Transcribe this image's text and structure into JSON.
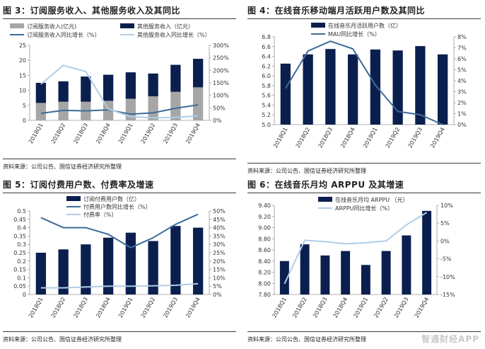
{
  "watermark": "智通财经APP",
  "colors": {
    "navy": "#0b1f4f",
    "grey": "#a6a6a6",
    "lightblue": "#b0cde6",
    "steel": "#3d6c99",
    "axis": "#999999"
  },
  "panels": [
    {
      "title": "图 3：订阅服务收入、其他服务收入及其同比",
      "source": "资料来源：公司公告、国信证券经济研究所整理"
    },
    {
      "title": "图 4：在线音乐移动端月活跃用户数及其同比",
      "source": "资料来源：公司公告、国信证券经济研究所整理"
    },
    {
      "title": "图 5：订阅付费用户数、付费率及增速",
      "source": "资料来源：公司公告、国信证券经济研究所整理"
    },
    {
      "title": "图 6：在线音乐月均 ARPPU 及其增速",
      "source": "资料来源：公司公告、国信证券经济研究所整理"
    }
  ],
  "chart_data": [
    {
      "type": "bar",
      "title": "订阅服务收入、其他服务收入及其同比",
      "stacked": true,
      "categories": [
        "2018Q1",
        "2018Q2",
        "2018Q3",
        "2018Q4",
        "2019Q1",
        "2019Q2",
        "2019Q3",
        "2019Q4"
      ],
      "ylim": [
        0,
        25
      ],
      "yticks": [
        0,
        5,
        10,
        15,
        20,
        25
      ],
      "y2lim": [
        0,
        300
      ],
      "y2ticks": [
        "0%",
        "50%",
        "100%",
        "150%",
        "200%",
        "250%",
        "300%"
      ],
      "y2max": 300,
      "series": [
        {
          "name": "订阅服务收入(亿元)",
          "kind": "bar",
          "color": "#a6a6a6",
          "values": [
            5.8,
            6.2,
            6.2,
            6.5,
            7.2,
            8.0,
            9.5,
            11.0
          ]
        },
        {
          "name": "其他服务收入（亿元）",
          "kind": "bar",
          "color": "#0b1f4f",
          "values": [
            6.7,
            6.8,
            8.4,
            8.7,
            8.8,
            7.6,
            9.0,
            9.5
          ]
        },
        {
          "name": "订阅服务收入同比增长（%）",
          "kind": "line",
          "axis": "right",
          "color": "#3d6c99",
          "values": [
            28,
            40,
            38,
            42,
            25,
            30,
            48,
            62
          ]
        },
        {
          "name": "其他服务收入同比增长（%）",
          "kind": "line",
          "axis": "right",
          "color": "#b0cde6",
          "values": [
            145,
            220,
            195,
            45,
            15,
            10,
            12,
            18
          ]
        }
      ]
    },
    {
      "type": "bar",
      "title": "在线音乐移动端月活跃用户数及其同比",
      "categories": [
        "2018Q1",
        "2018Q2",
        "2018Q3",
        "2018Q4",
        "2019Q1",
        "2019Q2",
        "2019Q3",
        "2019Q4"
      ],
      "ylim": [
        5.0,
        6.8
      ],
      "yticks": [
        "5.0",
        "5.2",
        "5.4",
        "5.6",
        "5.8",
        "6.0",
        "6.2",
        "6.4",
        "6.6",
        "6.8"
      ],
      "y2lim": [
        0,
        8
      ],
      "y2ticks": [
        "0%",
        "1%",
        "2%",
        "3%",
        "4%",
        "5%",
        "6%",
        "7%",
        "8%"
      ],
      "y2max": 8,
      "series": [
        {
          "name": "在线音乐月活跃用户数（亿）",
          "kind": "bar",
          "color": "#0b1f4f",
          "values": [
            6.25,
            6.44,
            6.55,
            6.44,
            6.54,
            6.52,
            6.61,
            6.44
          ]
        },
        {
          "name": "MAU同比增长（%）",
          "kind": "line",
          "axis": "right",
          "color": "#3d6c99",
          "values": [
            3.3,
            6.7,
            7.6,
            6.9,
            3.6,
            1.2,
            0.9,
            0.0
          ]
        }
      ]
    },
    {
      "type": "bar",
      "title": "订阅付费用户数、付费率及增速",
      "categories": [
        "2018Q1",
        "2018Q2",
        "2018Q3",
        "2018Q4",
        "2019Q1",
        "2019Q2",
        "2019Q3",
        "2019Q4"
      ],
      "ylim": [
        0,
        0.5
      ],
      "yticks": [
        "0",
        "0.05",
        "0.1",
        "0.15",
        "0.2",
        "0.25",
        "0.3",
        "0.35",
        "0.4",
        "0.45",
        "0.5"
      ],
      "y2lim": [
        0,
        50
      ],
      "y2ticks": [
        "0%",
        "5%",
        "10%",
        "15%",
        "20%",
        "25%",
        "30%",
        "35%",
        "40%",
        "45%",
        "50%"
      ],
      "y2max": 50,
      "series": [
        {
          "name": "订阅付费用户数（亿）",
          "kind": "bar",
          "color": "#0b1f4f",
          "values": [
            0.25,
            0.27,
            0.3,
            0.34,
            0.37,
            0.32,
            0.41,
            0.4
          ]
        },
        {
          "name": "付费用户数同比增长（%）",
          "kind": "line",
          "axis": "right",
          "color": "#3d6c99",
          "values": [
            46,
            40,
            40,
            36,
            28,
            34,
            42,
            48
          ]
        },
        {
          "name": "付费率（%）",
          "kind": "line",
          "axis": "right",
          "color": "#b0cde6",
          "values": [
            4.0,
            4.0,
            4.5,
            5.0,
            5.0,
            5.2,
            5.5,
            6.5
          ]
        }
      ]
    },
    {
      "type": "bar",
      "title": "在线音乐月均 ARPPU 及其增速",
      "categories": [
        "2018Q1",
        "2018Q2",
        "2018Q3",
        "2018Q4",
        "2019Q1",
        "2019Q2",
        "2019Q3",
        "2019Q4"
      ],
      "ylim": [
        7.8,
        9.4
      ],
      "yticks": [
        "7.80",
        "8.00",
        "8.20",
        "8.40",
        "8.60",
        "8.80",
        "9.00",
        "9.20",
        "9.40"
      ],
      "y2lim": [
        -15,
        10
      ],
      "y2ticks": [
        "-15%",
        "-10%",
        "-5%",
        "0%",
        "5%",
        "10%"
      ],
      "y2max": 10,
      "series": [
        {
          "name": "在线音乐月均 ARPPU （元）",
          "kind": "bar",
          "color": "#0b1f4f",
          "values": [
            8.4,
            8.7,
            8.5,
            8.58,
            8.33,
            8.58,
            8.86,
            9.3
          ]
        },
        {
          "name": "ARPPU同比增长（%）",
          "kind": "line",
          "axis": "right",
          "color": "#b0cde6",
          "values": [
            -12,
            0.2,
            -0.2,
            -0.8,
            -0.5,
            0.0,
            4.5,
            8.0
          ]
        }
      ]
    }
  ]
}
